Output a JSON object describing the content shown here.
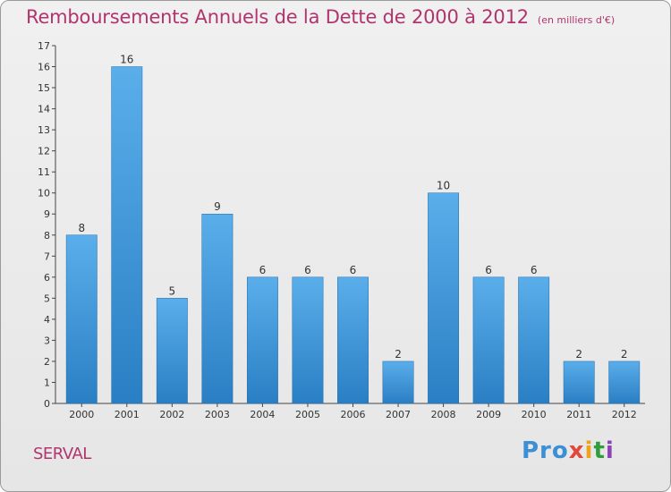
{
  "header": {
    "title": "Remboursements Annuels de la Dette de 2000 à 2012",
    "subtitle": "(en milliers d'€)"
  },
  "footer": {
    "place": "SERVAL",
    "logo": [
      "Pro",
      "x",
      "i",
      "t",
      "i"
    ]
  },
  "colors": {
    "bar_top": "#5aaeea",
    "bar_bottom": "#2a7fc4",
    "title": "#b0356e"
  },
  "chart_data": {
    "type": "bar",
    "title": "Remboursements Annuels de la Dette de 2000 à 2012",
    "subtitle": "(en milliers d'€)",
    "categories": [
      "2000",
      "2001",
      "2002",
      "2003",
      "2004",
      "2005",
      "2006",
      "2007",
      "2008",
      "2009",
      "2010",
      "2011",
      "2012"
    ],
    "values": [
      8,
      16,
      5,
      9,
      6,
      6,
      6,
      2,
      10,
      6,
      6,
      2,
      2
    ],
    "ylim": [
      0,
      17
    ],
    "yticks": [
      0,
      1,
      2,
      3,
      4,
      5,
      6,
      7,
      8,
      9,
      10,
      11,
      12,
      13,
      14,
      15,
      16,
      17
    ],
    "grid": false,
    "data_labels": true
  }
}
